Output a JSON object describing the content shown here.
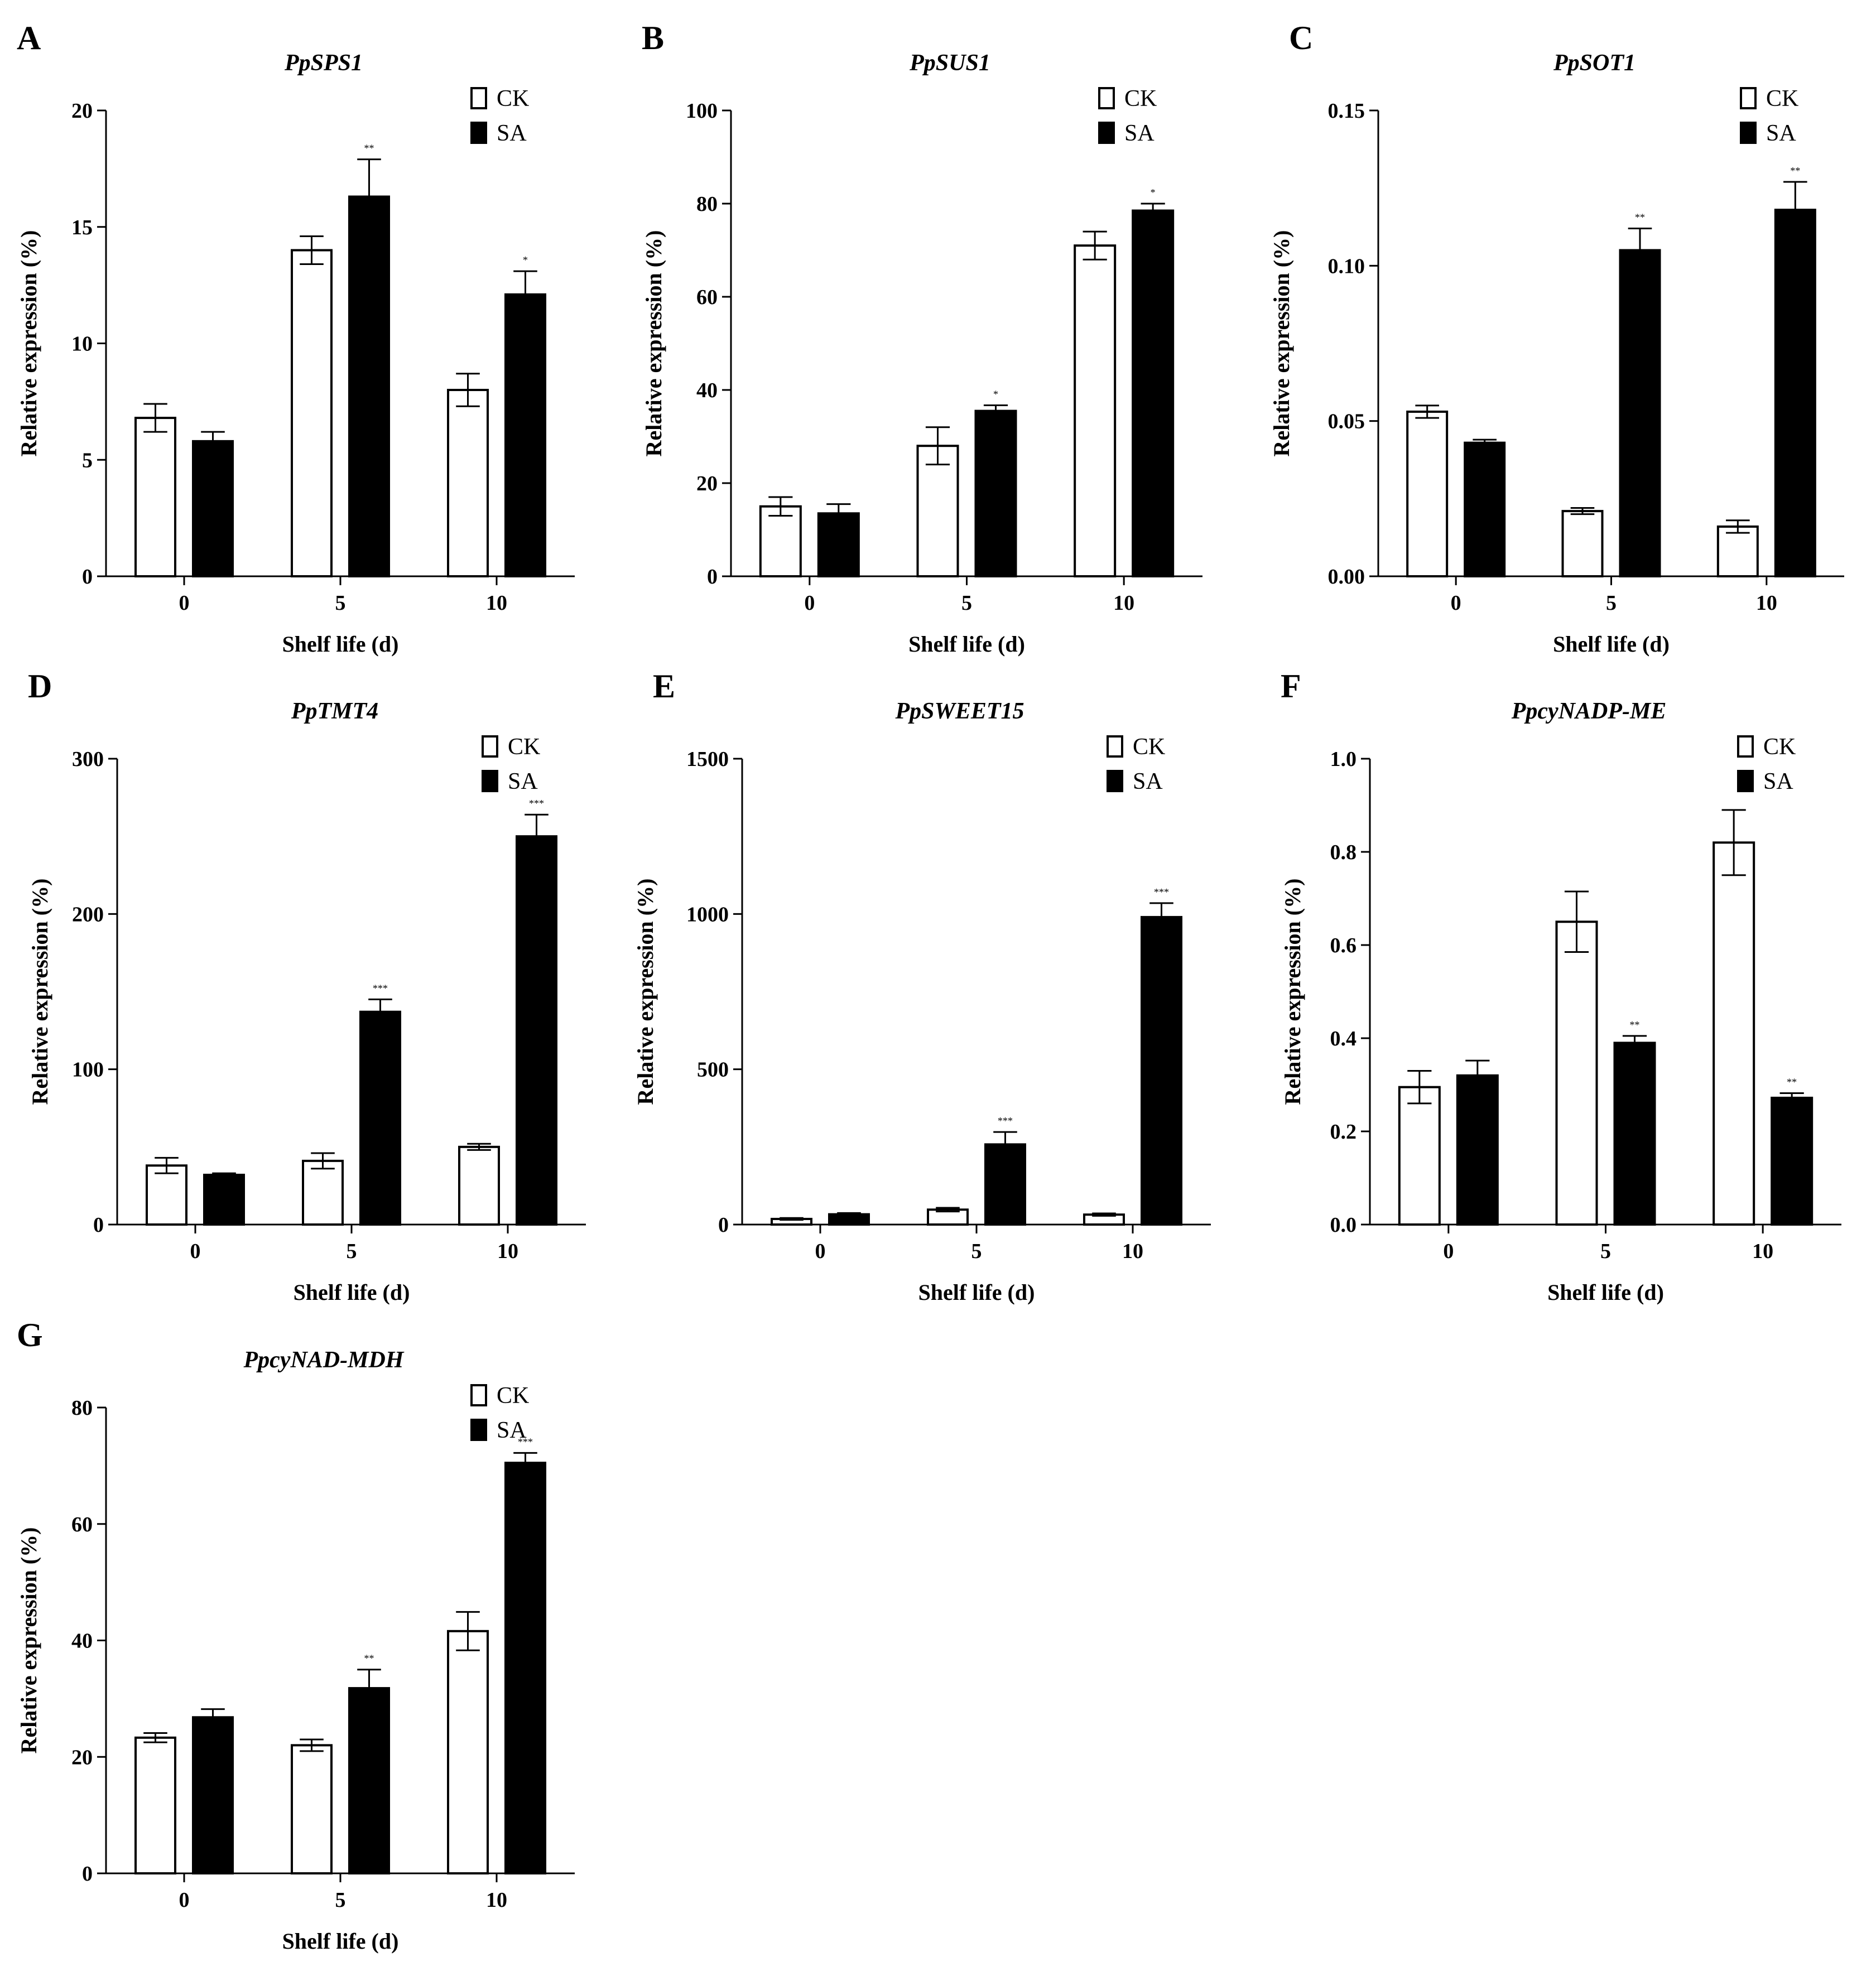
{
  "figure": {
    "ck_color": "#ffffff",
    "sa_color": "#000000",
    "axis_color": "#000000"
  },
  "chart_data": [
    {
      "panel": "A",
      "type": "bar",
      "title": "PpSPS1",
      "xlabel": "Shelf life (d)",
      "ylabel": "Relative expression (%)",
      "categories": [
        "0",
        "5",
        "10"
      ],
      "ylim": [
        0,
        20
      ],
      "yticks": [
        "0",
        "5",
        "10",
        "15",
        "20"
      ],
      "legend": [
        "CK",
        "SA"
      ],
      "legend_position": "top-right",
      "series": [
        {
          "name": "CK",
          "values": [
            6.8,
            14.0,
            8.0
          ],
          "errors": [
            0.6,
            0.6,
            0.7
          ],
          "sig": [
            "",
            "",
            ""
          ]
        },
        {
          "name": "SA",
          "values": [
            5.8,
            16.3,
            12.1
          ],
          "errors": [
            0.4,
            1.6,
            1.0
          ],
          "sig": [
            "",
            "**",
            "*"
          ]
        }
      ]
    },
    {
      "panel": "B",
      "type": "bar",
      "title": "PpSUS1",
      "xlabel": "Shelf life (d)",
      "ylabel": "Relative expression (%)",
      "categories": [
        "0",
        "5",
        "10"
      ],
      "ylim": [
        0,
        100
      ],
      "yticks": [
        "0",
        "20",
        "40",
        "60",
        "80",
        "100"
      ],
      "legend": [
        "CK",
        "SA"
      ],
      "legend_position": "top-right",
      "series": [
        {
          "name": "CK",
          "values": [
            15.0,
            28.0,
            71.0
          ],
          "errors": [
            2.0,
            4.0,
            3.0
          ],
          "sig": [
            "",
            "",
            ""
          ]
        },
        {
          "name": "SA",
          "values": [
            13.5,
            35.5,
            78.5
          ],
          "errors": [
            2.0,
            1.2,
            1.5
          ],
          "sig": [
            "",
            "*",
            "*"
          ]
        }
      ]
    },
    {
      "panel": "C",
      "type": "bar",
      "title": "PpSOT1",
      "xlabel": "Shelf life (d)",
      "ylabel": "Relative expression (%)",
      "categories": [
        "0",
        "5",
        "10"
      ],
      "ylim": [
        0,
        0.15
      ],
      "yticks": [
        "0.00",
        "0.05",
        "0.10",
        "0.15"
      ],
      "legend": [
        "CK",
        "SA"
      ],
      "legend_position": "top-right",
      "series": [
        {
          "name": "CK",
          "values": [
            0.053,
            0.021,
            0.016
          ],
          "errors": [
            0.002,
            0.001,
            0.002
          ],
          "sig": [
            "",
            "",
            ""
          ]
        },
        {
          "name": "SA",
          "values": [
            0.043,
            0.105,
            0.118
          ],
          "errors": [
            0.001,
            0.007,
            0.009
          ],
          "sig": [
            "",
            "**",
            "**"
          ]
        }
      ]
    },
    {
      "panel": "D",
      "type": "bar",
      "title": "PpTMT4",
      "xlabel": "Shelf life (d)",
      "ylabel": "Relative expression (%)",
      "categories": [
        "0",
        "5",
        "10"
      ],
      "ylim": [
        0,
        300
      ],
      "yticks": [
        "0",
        "100",
        "200",
        "300"
      ],
      "legend": [
        "CK",
        "SA"
      ],
      "legend_position": "top-right",
      "series": [
        {
          "name": "CK",
          "values": [
            38,
            41,
            50
          ],
          "errors": [
            5,
            5,
            2
          ],
          "sig": [
            "",
            "",
            ""
          ]
        },
        {
          "name": "SA",
          "values": [
            32,
            137,
            250
          ],
          "errors": [
            1,
            8,
            14
          ],
          "sig": [
            "",
            "***",
            "***"
          ]
        }
      ]
    },
    {
      "panel": "E",
      "type": "bar",
      "title": "PpSWEET15",
      "xlabel": "Shelf life (d)",
      "ylabel": "Relative expression (%)",
      "categories": [
        "0",
        "5",
        "10"
      ],
      "ylim": [
        0,
        1500
      ],
      "yticks": [
        "0",
        "500",
        "1000",
        "1500"
      ],
      "legend": [
        "CK",
        "SA"
      ],
      "legend_position": "top-right",
      "series": [
        {
          "name": "CK",
          "values": [
            18,
            48,
            32
          ],
          "errors": [
            3,
            6,
            4
          ],
          "sig": [
            "",
            "",
            ""
          ]
        },
        {
          "name": "SA",
          "values": [
            33,
            258,
            990
          ],
          "errors": [
            4,
            40,
            45
          ],
          "sig": [
            "",
            "***",
            "***"
          ]
        }
      ]
    },
    {
      "panel": "F",
      "type": "bar",
      "title": "PpcyNADP-ME",
      "xlabel": "Shelf life (d)",
      "ylabel": "Relative expression (%)",
      "categories": [
        "0",
        "5",
        "10"
      ],
      "ylim": [
        0,
        1.0
      ],
      "yticks": [
        "0.0",
        "0.2",
        "0.4",
        "0.6",
        "0.8",
        "1.0"
      ],
      "legend": [
        "CK",
        "SA"
      ],
      "legend_position": "top-right",
      "series": [
        {
          "name": "CK",
          "values": [
            0.295,
            0.65,
            0.82
          ],
          "errors": [
            0.035,
            0.065,
            0.07
          ],
          "sig": [
            "",
            "",
            ""
          ]
        },
        {
          "name": "SA",
          "values": [
            0.32,
            0.39,
            0.272
          ],
          "errors": [
            0.032,
            0.015,
            0.01
          ],
          "sig": [
            "",
            "**",
            "**"
          ]
        }
      ]
    },
    {
      "panel": "G",
      "type": "bar",
      "title": "PpcyNAD-MDH",
      "xlabel": "Shelf life (d)",
      "ylabel": "Relative expression (%)",
      "categories": [
        "0",
        "5",
        "10"
      ],
      "ylim": [
        0,
        80
      ],
      "yticks": [
        "0",
        "20",
        "40",
        "60",
        "80"
      ],
      "legend": [
        "CK",
        "SA"
      ],
      "legend_position": "top-right",
      "series": [
        {
          "name": "CK",
          "values": [
            23.3,
            22.0,
            41.6
          ],
          "errors": [
            0.8,
            1.0,
            3.3
          ],
          "sig": [
            "",
            "",
            ""
          ]
        },
        {
          "name": "SA",
          "values": [
            26.8,
            31.8,
            70.5
          ],
          "errors": [
            1.4,
            3.2,
            1.7
          ],
          "sig": [
            "",
            "**",
            "***"
          ]
        }
      ]
    }
  ]
}
